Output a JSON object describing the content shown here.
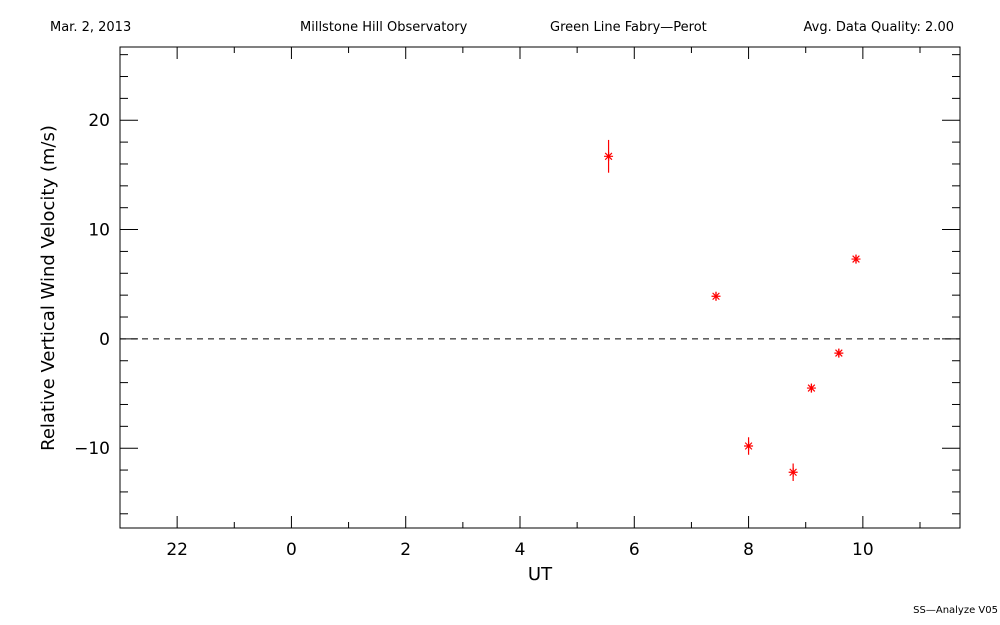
{
  "header": {
    "date": "Mar. 2, 2013",
    "observatory": "Millstone Hill Observatory",
    "instrument": "Green Line Fabry—Perot",
    "quality": "Avg. Data Quality: 2.00"
  },
  "footer": {
    "software": "SS—Analyze V05"
  },
  "chart_data": {
    "type": "scatter",
    "xlabel": "UT",
    "ylabel": "Relative Vertical Wind Velocity (m/s)",
    "x_ticks": [
      22,
      0,
      2,
      4,
      6,
      8,
      10
    ],
    "x_tick_labels": [
      "22",
      "0",
      "2",
      "4",
      "6",
      "8",
      "10"
    ],
    "xlim_hours_continuous": [
      21.0,
      35.7
    ],
    "y_ticks": [
      -10,
      0,
      10,
      20
    ],
    "y_tick_labels": [
      "−10",
      "0",
      "10",
      "20"
    ],
    "ylim": [
      -17.3,
      26.7
    ],
    "reference_line": {
      "y": 0,
      "style": "dashed"
    },
    "marker": "asterisk",
    "color": "#ff0000",
    "points": [
      {
        "x": 5.55,
        "y": 16.7,
        "err": 1.5
      },
      {
        "x": 7.43,
        "y": 3.9,
        "err": 0.4
      },
      {
        "x": 8.0,
        "y": -9.8,
        "err": 0.8
      },
      {
        "x": 8.78,
        "y": -12.2,
        "err": 0.8
      },
      {
        "x": 9.1,
        "y": -4.5,
        "err": 0.4
      },
      {
        "x": 9.58,
        "y": -1.3,
        "err": 0.4
      },
      {
        "x": 9.88,
        "y": 7.3,
        "err": 0.4
      }
    ]
  }
}
